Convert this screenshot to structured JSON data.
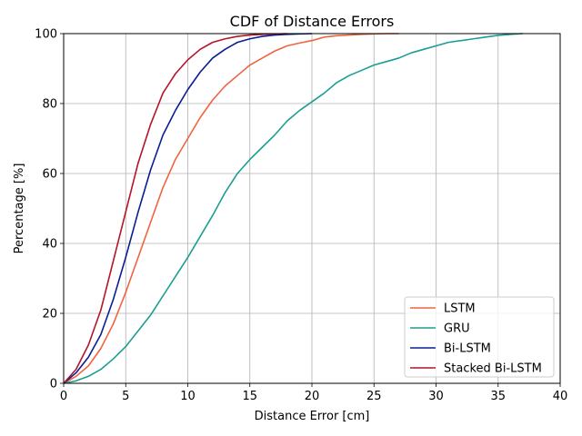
{
  "chart_data": {
    "type": "line",
    "title": "CDF of Distance Errors",
    "xlabel": "Distance Error [cm]",
    "ylabel": "Percentage [%]",
    "xlim": [
      0,
      40
    ],
    "ylim": [
      0,
      100
    ],
    "xticks": [
      0,
      5,
      10,
      15,
      20,
      25,
      30,
      35,
      40
    ],
    "yticks": [
      0,
      20,
      40,
      60,
      80,
      100
    ],
    "grid": true,
    "legend_position": "lower-right",
    "series": [
      {
        "name": "LSTM",
        "color": "#f06440",
        "x": [
          0,
          1,
          2,
          3,
          4,
          5,
          6,
          7,
          8,
          9,
          10,
          11,
          12,
          13,
          14,
          15,
          16,
          17,
          18,
          19,
          20,
          21,
          22,
          23,
          24,
          25,
          26,
          27
        ],
        "y": [
          0,
          2,
          5,
          10,
          17,
          26,
          36,
          46,
          56,
          64,
          70,
          76,
          81,
          85,
          88,
          91,
          93,
          95,
          96.5,
          97.3,
          98,
          99,
          99.4,
          99.6,
          99.8,
          99.9,
          100,
          100
        ]
      },
      {
        "name": "GRU",
        "color": "#1a9e94",
        "x": [
          0,
          1,
          2,
          3,
          4,
          5,
          6,
          7,
          8,
          9,
          10,
          11,
          12,
          13,
          14,
          15,
          16,
          17,
          18,
          19,
          20,
          21,
          22,
          23,
          24,
          25,
          26,
          27,
          28,
          29,
          30,
          31,
          32,
          33,
          34,
          35,
          36,
          37
        ],
        "y": [
          0,
          0.7,
          2,
          4,
          7,
          10.5,
          15,
          19.5,
          25,
          30.5,
          36,
          42,
          48,
          54.5,
          60,
          64,
          67.5,
          71,
          75,
          78,
          80.5,
          83,
          86,
          88,
          89.5,
          91,
          92,
          93,
          94.5,
          95.5,
          96.5,
          97.5,
          98,
          98.5,
          99,
          99.5,
          99.8,
          100
        ]
      },
      {
        "name": "Bi-LSTM",
        "color": "#0a1e94",
        "x": [
          0,
          1,
          2,
          3,
          4,
          5,
          6,
          7,
          8,
          9,
          10,
          11,
          12,
          13,
          14,
          15,
          16,
          17,
          18,
          19,
          20
        ],
        "y": [
          0,
          3,
          7.5,
          14,
          24,
          36,
          49,
          61,
          71,
          78,
          84,
          89,
          93,
          95.5,
          97.5,
          98.5,
          99.2,
          99.6,
          99.8,
          99.9,
          100
        ]
      },
      {
        "name": "Stacked Bi-LSTM",
        "color": "#b4142a",
        "x": [
          0,
          1,
          2,
          3,
          4,
          5,
          6,
          7,
          8,
          9,
          10,
          11,
          12,
          13,
          14,
          15,
          16,
          17,
          18
        ],
        "y": [
          0,
          4,
          11,
          21,
          35,
          49,
          63,
          74,
          83,
          88.5,
          92.5,
          95.5,
          97.5,
          98.5,
          99.2,
          99.6,
          99.8,
          99.9,
          100
        ]
      }
    ]
  }
}
